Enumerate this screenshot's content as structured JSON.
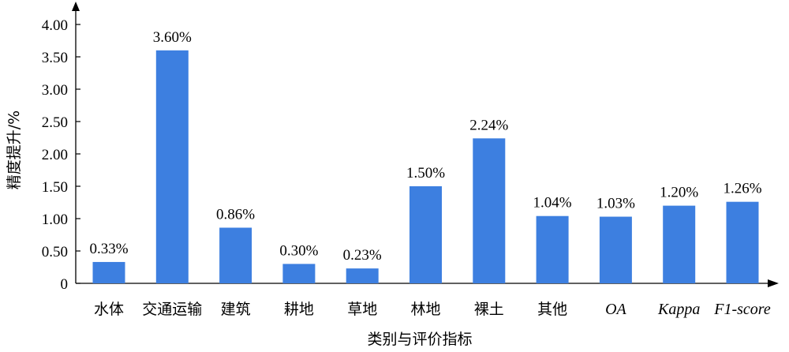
{
  "chart_data": {
    "type": "bar",
    "xlabel": "类别与评价指标",
    "ylabel": "精度提升/%",
    "ylim": [
      0,
      4.0
    ],
    "yticks": [
      "0",
      "0.50",
      "1.00",
      "1.50",
      "2.00",
      "2.50",
      "3.00",
      "3.50",
      "4.00"
    ],
    "ytick_values": [
      0,
      0.5,
      1.0,
      1.5,
      2.0,
      2.5,
      3.0,
      3.5,
      4.0
    ],
    "categories": [
      "水体",
      "交通运输",
      "建筑",
      "耕地",
      "草地",
      "林地",
      "裸土",
      "其他",
      "OA",
      "Kappa",
      "F1-score"
    ],
    "italic_categories": [
      "OA",
      "Kappa",
      "F1-score"
    ],
    "values": [
      0.33,
      3.6,
      0.86,
      0.3,
      0.23,
      1.5,
      2.24,
      1.04,
      1.03,
      1.2,
      1.26
    ],
    "data_labels": [
      "0.33%",
      "3.60%",
      "0.86%",
      "0.30%",
      "0.23%",
      "1.50%",
      "2.24%",
      "1.04%",
      "1.03%",
      "1.20%",
      "1.26%"
    ],
    "grid": false,
    "legend": "none",
    "bar_color": "#3d7fe0"
  }
}
